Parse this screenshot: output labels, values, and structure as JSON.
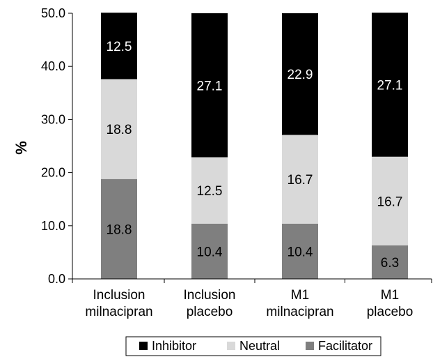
{
  "chart_data": {
    "type": "bar",
    "stacked": true,
    "ylabel": "%",
    "xlabel": "",
    "ylim": [
      0,
      50
    ],
    "yticks": [
      "0.0",
      "10.0",
      "20.0",
      "30.0",
      "40.0",
      "50.0"
    ],
    "categories": [
      [
        "Inclusion",
        "milnacipran"
      ],
      [
        "Inclusion",
        "placebo"
      ],
      [
        "M1",
        "milnacipran"
      ],
      [
        "M1",
        "placebo"
      ]
    ],
    "series": [
      {
        "name": "Facilitator",
        "color": "#7f7f7f",
        "label_color": "#000000",
        "values": [
          18.8,
          10.4,
          10.4,
          6.3
        ]
      },
      {
        "name": "Neutral",
        "color": "#d9d9d9",
        "label_color": "#000000",
        "values": [
          18.8,
          12.5,
          16.7,
          16.7
        ]
      },
      {
        "name": "Inhibitor",
        "color": "#000000",
        "label_color": "#ffffff",
        "values": [
          12.5,
          27.1,
          22.9,
          27.1
        ]
      }
    ],
    "legend": {
      "placement": "bottom",
      "order": [
        "Inhibitor",
        "Neutral",
        "Facilitator"
      ]
    },
    "grid": false
  }
}
